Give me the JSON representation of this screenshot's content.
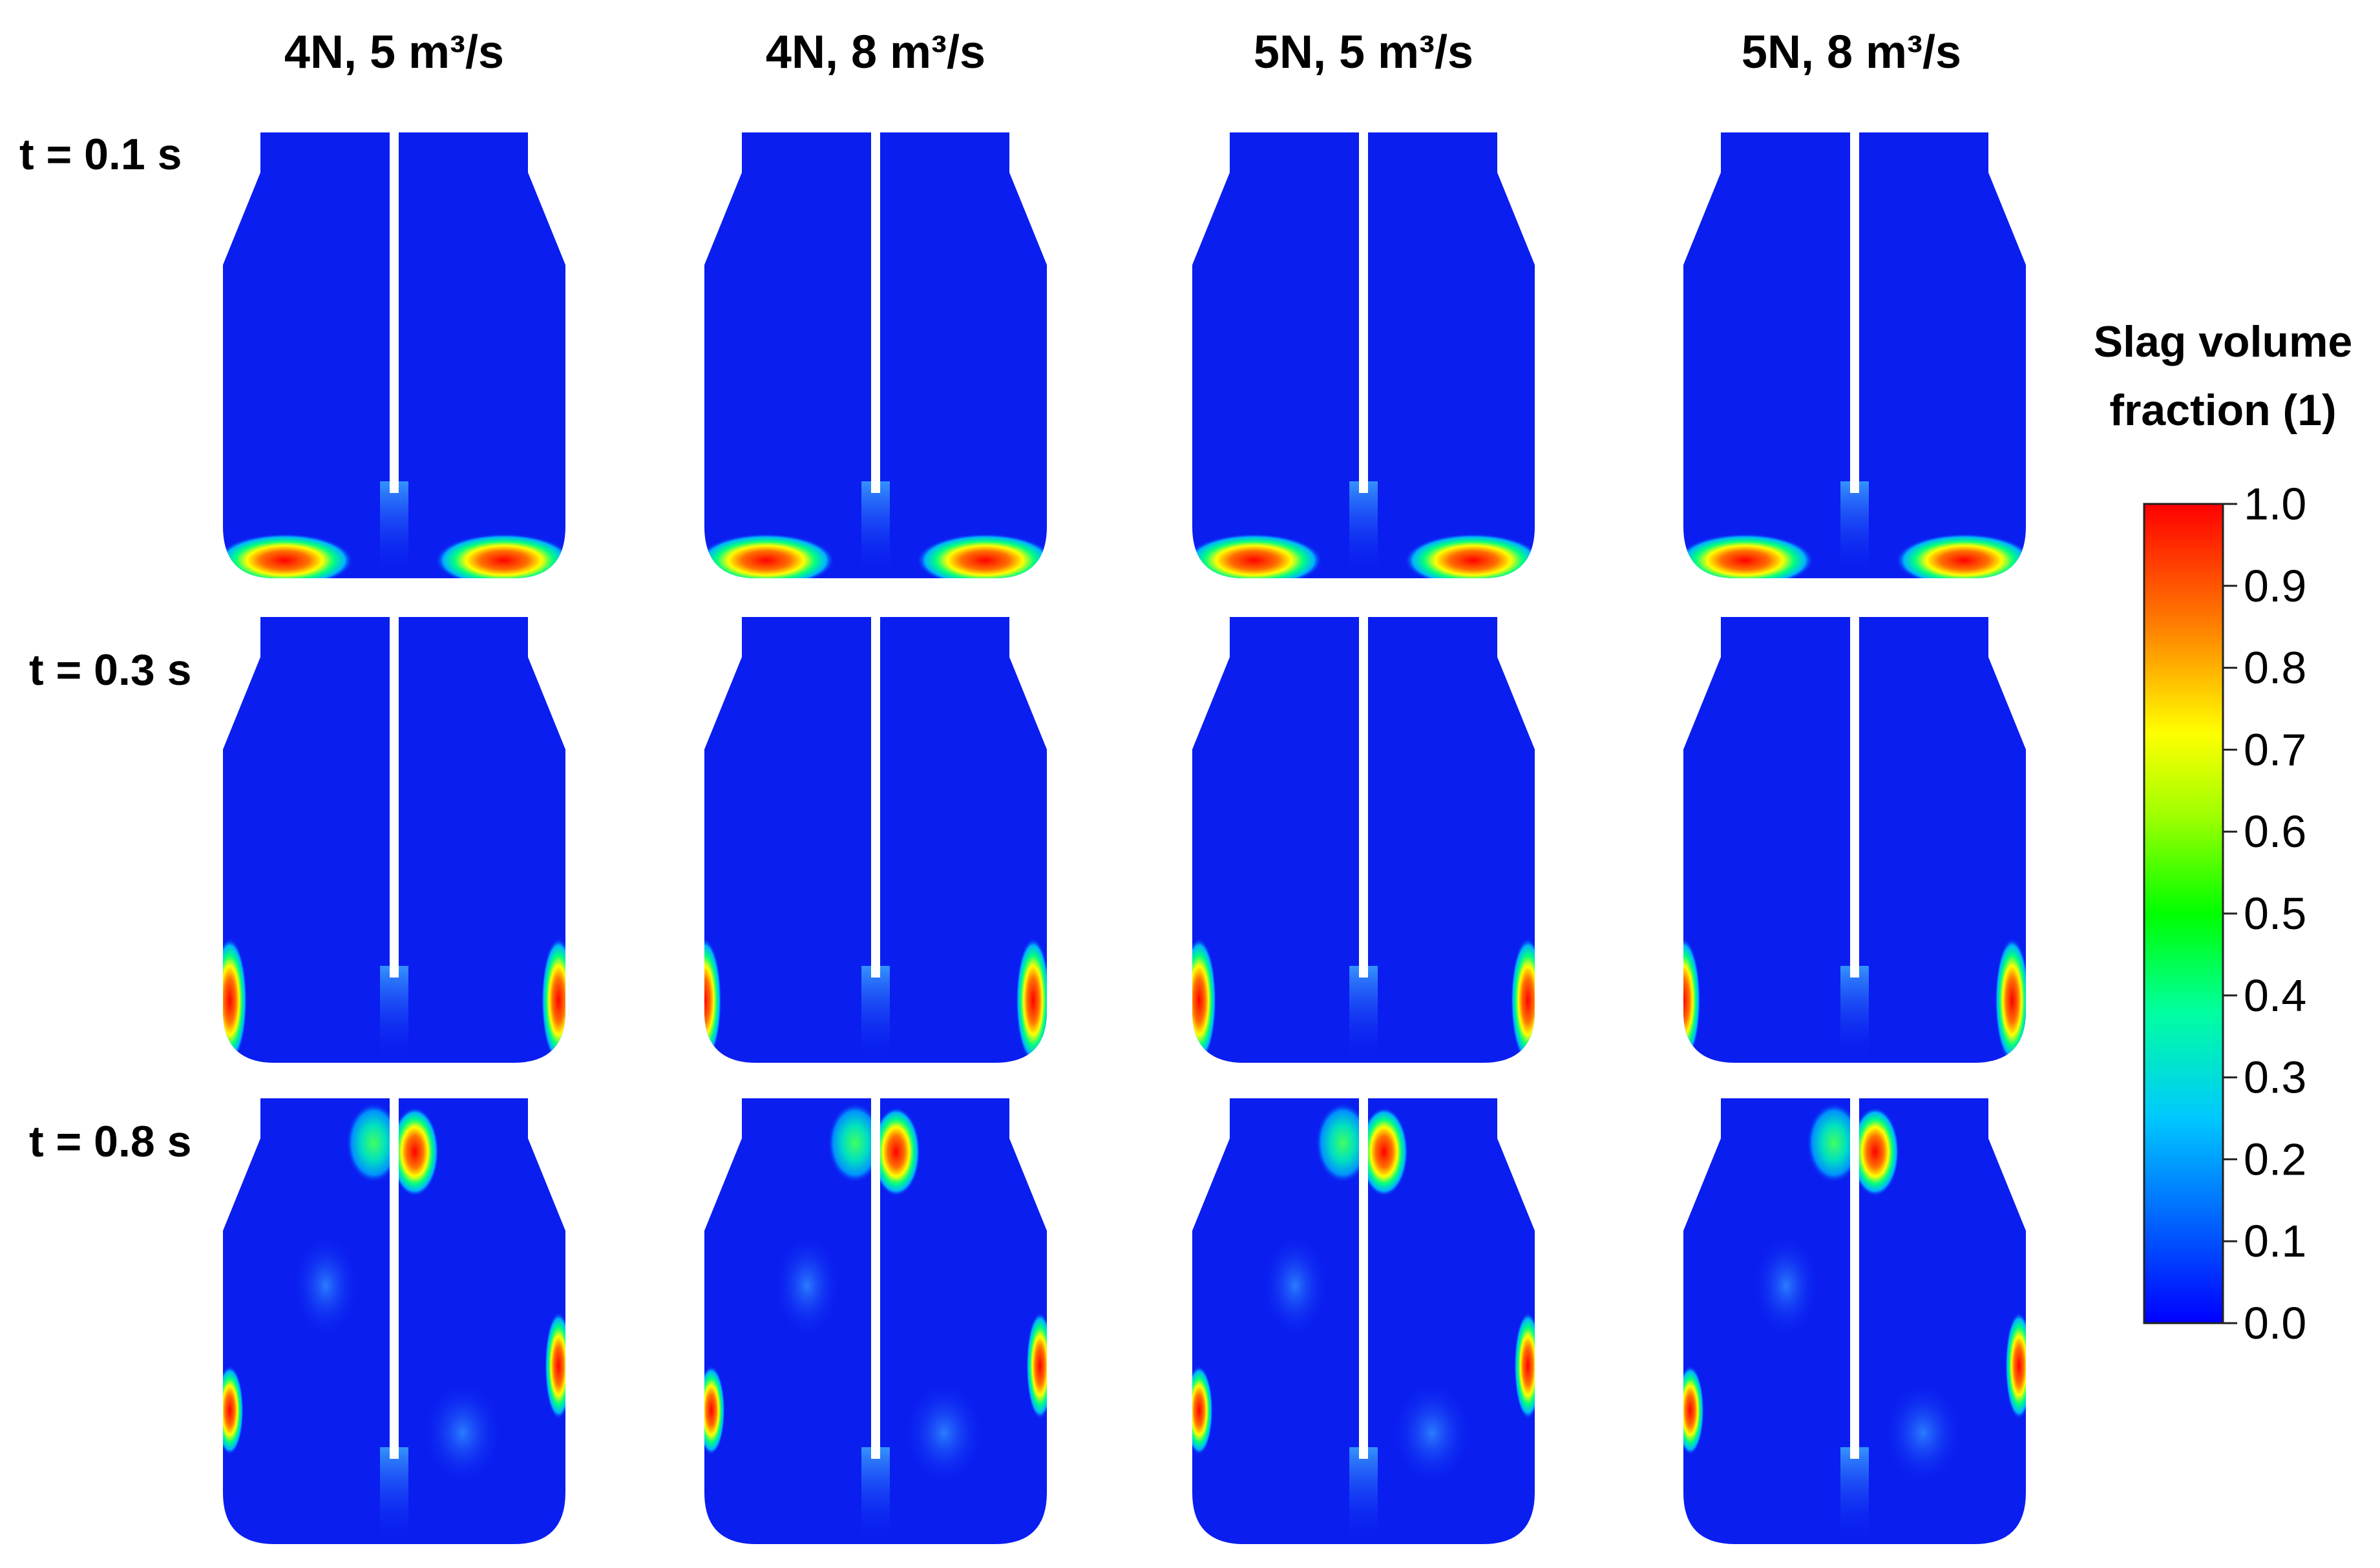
{
  "columns": [
    {
      "id": "4n-5",
      "label": "4N, 5 m³/s"
    },
    {
      "id": "4n-8",
      "label": "4N, 8 m³/s"
    },
    {
      "id": "5n-5",
      "label": "5N, 5 m³/s"
    },
    {
      "id": "5n-8",
      "label": "5N, 8 m³/s"
    }
  ],
  "rows": [
    {
      "id": "t01",
      "label": "t = 0.1 s"
    },
    {
      "id": "t03",
      "label": "t = 0.3 s"
    },
    {
      "id": "t08",
      "label": "t = 0.8 s"
    }
  ],
  "colorbar": {
    "title_line1": "Slag volume",
    "title_line2": "fraction (1)",
    "ticks": [
      "1.0",
      "0.9",
      "0.8",
      "0.7",
      "0.6",
      "0.5",
      "0.4",
      "0.3",
      "0.2",
      "0.1",
      "0.0"
    ],
    "colors": [
      "#0000ff",
      "#0080ff",
      "#00ffff",
      "#00ff80",
      "#00ff00",
      "#80ff00",
      "#ffff00",
      "#ff8000",
      "#ff0000"
    ]
  },
  "colors": {
    "background_field": "#0a1ef0",
    "lance": "#ffffff"
  }
}
